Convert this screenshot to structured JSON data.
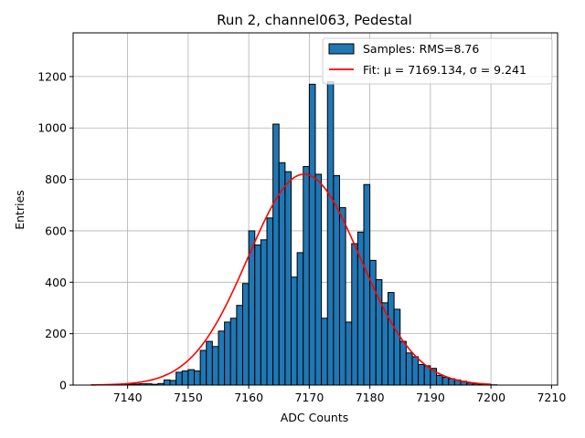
{
  "chart_data": {
    "type": "bar",
    "title": "Run 2, channel063, Pedestal",
    "xlabel": "ADC Counts",
    "ylabel": "Entries",
    "xlim": [
      7131,
      7211
    ],
    "ylim": [
      0,
      1370
    ],
    "xticks": [
      7140,
      7150,
      7160,
      7170,
      7180,
      7190,
      7200,
      7210
    ],
    "yticks": [
      0,
      200,
      400,
      600,
      800,
      1000,
      1200
    ],
    "grid": true,
    "legend_position": "top-right",
    "bin_width": 1,
    "colors": {
      "bars": "#1f77b4",
      "fit": "#ff0000",
      "edge": "#000000",
      "grid": "#b0b0b0"
    },
    "series": [
      {
        "name": "Samples: RMS=8.76",
        "type": "histogram",
        "bin_starts": [
          7134,
          7135,
          7136,
          7137,
          7138,
          7139,
          7140,
          7141,
          7142,
          7143,
          7144,
          7145,
          7146,
          7147,
          7148,
          7149,
          7150,
          7151,
          7152,
          7153,
          7154,
          7155,
          7156,
          7157,
          7158,
          7159,
          7160,
          7161,
          7162,
          7163,
          7164,
          7165,
          7166,
          7167,
          7168,
          7169,
          7170,
          7171,
          7172,
          7173,
          7174,
          7175,
          7176,
          7177,
          7178,
          7179,
          7180,
          7181,
          7182,
          7183,
          7184,
          7185,
          7186,
          7187,
          7188,
          7189,
          7190,
          7191,
          7192,
          7193,
          7194,
          7195,
          7196,
          7197,
          7198,
          7199,
          7200
        ],
        "values": [
          1,
          1,
          1,
          2,
          2,
          3,
          4,
          4,
          5,
          5,
          3,
          6,
          20,
          18,
          50,
          55,
          60,
          55,
          135,
          170,
          150,
          210,
          245,
          260,
          310,
          395,
          600,
          545,
          565,
          650,
          1015,
          865,
          830,
          420,
          515,
          850,
          1170,
          820,
          260,
          1180,
          815,
          690,
          245,
          550,
          595,
          780,
          485,
          410,
          320,
          360,
          295,
          170,
          125,
          110,
          80,
          75,
          65,
          38,
          30,
          25,
          20,
          15,
          8,
          5,
          3,
          2,
          1
        ]
      },
      {
        "name": "Fit: μ = 7169.134, σ = 9.241",
        "type": "line",
        "mu": 7169.134,
        "sigma": 9.241,
        "amplitude": 820,
        "x_range": [
          7134,
          7200
        ]
      }
    ]
  }
}
